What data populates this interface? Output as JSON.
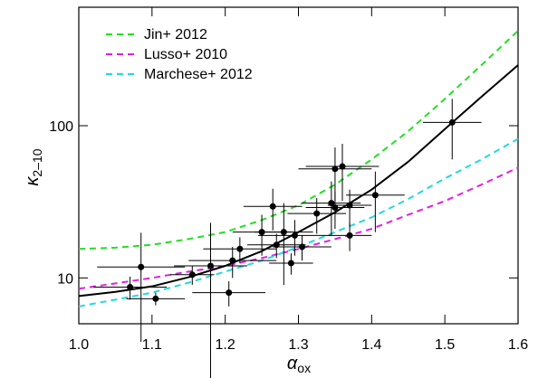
{
  "chart_data": {
    "type": "scatter",
    "xlabel": "α",
    "xlabel_sub": "ox",
    "ylabel": "κ",
    "ylabel_sub": "2–10",
    "xlim": [
      1.0,
      1.6
    ],
    "xticks": [
      {
        "value": 1.0,
        "label": "1.0"
      },
      1.1,
      1.2,
      1.3,
      1.4,
      1.5,
      1.6
    ],
    "ylim": [
      5,
      600
    ],
    "yticks": [
      10,
      100
    ],
    "log_y": true,
    "legend": "upper left",
    "series": [
      {
        "type": "line",
        "name": "Jin+ 2012",
        "color": "#22e022",
        "dashed": true,
        "x": [
          1.0,
          1.05,
          1.1,
          1.15,
          1.2,
          1.25,
          1.3,
          1.35,
          1.4,
          1.45,
          1.5,
          1.55,
          1.6
        ],
        "values": [
          15.5,
          15.8,
          16.5,
          18,
          20,
          24,
          30,
          41,
          60,
          92,
          150,
          250,
          420
        ]
      },
      {
        "type": "line",
        "name": "Lusso+ 2010",
        "color": "#e020e0",
        "dashed": true,
        "x": [
          1.0,
          1.05,
          1.1,
          1.15,
          1.2,
          1.25,
          1.3,
          1.35,
          1.4,
          1.45,
          1.5,
          1.55,
          1.6
        ],
        "values": [
          8.5,
          9.2,
          10,
          11,
          12,
          13.5,
          15.5,
          18,
          21,
          26,
          32,
          41,
          53
        ]
      },
      {
        "type": "line",
        "name": "Marchese+ 2012",
        "color": "#22d8e0",
        "dashed": true,
        "x": [
          1.0,
          1.05,
          1.1,
          1.15,
          1.2,
          1.25,
          1.3,
          1.35,
          1.4,
          1.45,
          1.5,
          1.55,
          1.6
        ],
        "values": [
          6.5,
          7.2,
          8,
          9.3,
          11,
          13,
          16,
          20,
          25,
          33,
          45,
          60,
          82
        ]
      },
      {
        "type": "line",
        "color": "#000000",
        "dashed": false,
        "x": [
          1.0,
          1.05,
          1.1,
          1.15,
          1.2,
          1.25,
          1.3,
          1.35,
          1.4,
          1.45,
          1.5,
          1.55,
          1.6
        ],
        "values": [
          7.6,
          8.1,
          8.8,
          10.1,
          12,
          15,
          20,
          27,
          38,
          58,
          95,
          155,
          250
        ]
      },
      {
        "type": "scatter",
        "color": "#000000",
        "x": [
          1.07,
          1.085,
          1.105,
          1.155,
          1.18,
          1.205,
          1.21,
          1.22,
          1.25,
          1.265,
          1.27,
          1.28,
          1.29,
          1.295,
          1.305,
          1.325,
          1.345,
          1.35,
          1.35,
          1.36,
          1.37,
          1.37,
          1.405,
          1.51
        ],
        "values": [
          8.7,
          11.8,
          7.3,
          10.5,
          12,
          8,
          13,
          15.5,
          20,
          29.5,
          16.5,
          20,
          12.5,
          19,
          16,
          26.5,
          31,
          52,
          29,
          54,
          30,
          19,
          35,
          105
        ],
        "xerr": [
          0.05,
          0.06,
          0.04,
          0.03,
          0.05,
          0.05,
          0.06,
          0.05,
          0.04,
          0.04,
          0.04,
          0.04,
          0.03,
          0.05,
          0.04,
          0.04,
          0.04,
          0.05,
          0.04,
          0.05,
          0.03,
          0.03,
          0.04,
          0.04
        ],
        "yerr": [
          1.5,
          8,
          0.7,
          1.5,
          11,
          1.5,
          3,
          3,
          6,
          9,
          3,
          11,
          2,
          5,
          3,
          7,
          12,
          20,
          8,
          22,
          8,
          4,
          15,
          45
        ]
      }
    ]
  }
}
